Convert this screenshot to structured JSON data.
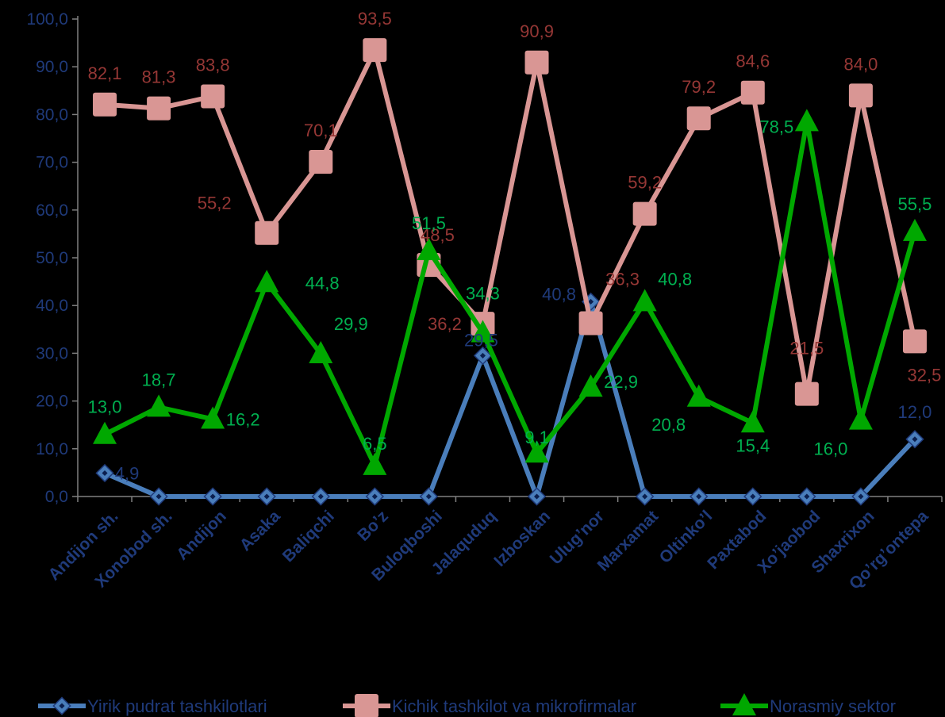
{
  "chart_data": {
    "type": "line",
    "title": "",
    "xlabel": "",
    "ylabel": "",
    "ylim": [
      0,
      100
    ],
    "ytick_labels": [
      "0,0",
      "10,0",
      "20,0",
      "30,0",
      "40,0",
      "50,0",
      "60,0",
      "70,0",
      "80,0",
      "90,0",
      "100,0"
    ],
    "grid": false,
    "legend": "bottom",
    "categories": [
      "Andijon sh.",
      "Xonobod sh.",
      "Andijon",
      "Asaka",
      "Baliqchi",
      "Bo’z",
      "Buloqboshi",
      "Jalaquduq",
      "Izboskan",
      "Ulug’nor",
      "Marxamat",
      "Oltinko’l",
      "Paxtabod",
      "Xo’jaobod",
      "Shaxrixon",
      "Qo’rg’ontepa"
    ],
    "series": [
      {
        "name": "Yirik pudrat tashkilotlari",
        "color": "#4a7ebb",
        "label_color": "#1f3a7a",
        "marker": "diamond",
        "values": [
          4.9,
          0,
          0,
          0,
          0,
          0,
          0,
          29.5,
          0,
          40.8,
          0,
          0,
          0,
          0,
          0,
          12.0
        ],
        "labels": [
          "4,9",
          "",
          "",
          "",
          "",
          "",
          "",
          "29,5",
          "",
          "40,8",
          "",
          "",
          "",
          "",
          "",
          "12,0"
        ]
      },
      {
        "name": "Kichik tashkilot va mikrofirmalar",
        "color": "#d99694",
        "label_color": "#953735",
        "marker": "square",
        "values": [
          82.1,
          81.3,
          83.8,
          55.2,
          70.1,
          93.5,
          48.5,
          36.2,
          90.9,
          36.3,
          59.2,
          79.2,
          84.6,
          21.5,
          84.0,
          32.5
        ],
        "labels": [
          "82,1",
          "81,3",
          "83,8",
          "55,2",
          "70,1",
          "93,5",
          "48,5",
          "36,2",
          "90,9",
          "36,3",
          "59,2",
          "79,2",
          "84,6",
          "21,5",
          "84,0",
          "32,5"
        ]
      },
      {
        "name": "Norasmiy sektor",
        "color": "#00a800",
        "label_color": "#00b050",
        "marker": "triangle",
        "values": [
          13.0,
          18.7,
          16.2,
          44.8,
          29.9,
          6.5,
          51.5,
          34.3,
          9.1,
          22.9,
          40.8,
          20.8,
          15.4,
          78.5,
          16.0,
          55.5
        ],
        "labels": [
          "13,0",
          "18,7",
          "16,2",
          "44,8",
          "29,9",
          "6,5",
          "51,5",
          "34,3",
          "9,1",
          "22,9",
          "40,8",
          "20,8",
          "15,4",
          "78,5",
          "16,0",
          "55,5"
        ]
      }
    ]
  }
}
